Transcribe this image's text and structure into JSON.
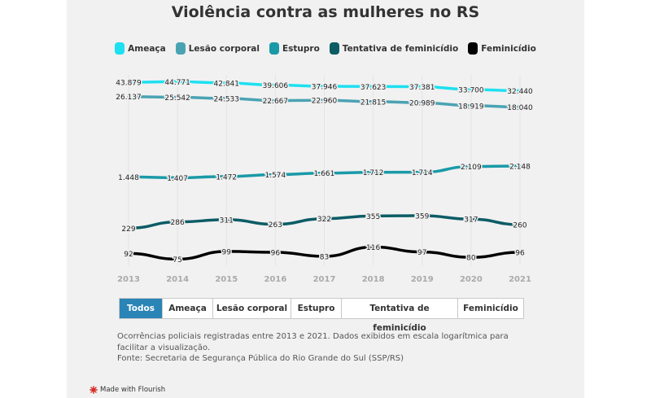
{
  "chart_data": {
    "type": "line",
    "title": "Violência contra as mulheres no RS",
    "x": [
      "2013",
      "2014",
      "2015",
      "2016",
      "2017",
      "2018",
      "2019",
      "2020",
      "2021"
    ],
    "y_scale": "log",
    "grid": "vertical",
    "legend_position": "top",
    "series": [
      {
        "name": "Ameaça",
        "color": "#1ee0f0",
        "values": [
          43879,
          44771,
          42841,
          39606,
          37946,
          37623,
          37381,
          33700,
          32440
        ],
        "labels": [
          "43.879",
          "44.771",
          "42.841",
          "39.606",
          "37.946",
          "37.623",
          "37.381",
          "33.700",
          "32.440"
        ]
      },
      {
        "name": "Lesão corporal",
        "color": "#4aa3b3",
        "values": [
          26137,
          25542,
          24533,
          22667,
          22960,
          21815,
          20989,
          18919,
          18040
        ],
        "labels": [
          "26.137",
          "25.542",
          "24.533",
          "22.667",
          "22.960",
          "21.815",
          "20.989",
          "18.919",
          "18.040"
        ]
      },
      {
        "name": "Estupro",
        "color": "#1a9aa8",
        "values": [
          1448,
          1407,
          1472,
          1574,
          1661,
          1712,
          1714,
          2109,
          2148
        ],
        "labels": [
          "1.448",
          "1.407",
          "1.472",
          "1.574",
          "1.661",
          "1.712",
          "1.714",
          "2.109",
          "2.148"
        ]
      },
      {
        "name": "Tentativa de feminicídio",
        "color": "#0c5c66",
        "values": [
          229,
          286,
          311,
          263,
          322,
          355,
          359,
          317,
          260
        ],
        "labels": [
          "229",
          "286",
          "311",
          "263",
          "322",
          "355",
          "359",
          "317",
          "260"
        ]
      },
      {
        "name": "Feminicídio",
        "color": "#000000",
        "values": [
          92,
          75,
          99,
          96,
          83,
          116,
          97,
          80,
          96
        ],
        "labels": [
          "92",
          "75",
          "99",
          "96",
          "83",
          "116",
          "97",
          "80",
          "96"
        ]
      }
    ]
  },
  "tabs": {
    "items": [
      "Todos",
      "Ameaça",
      "Lesão corporal",
      "Estupro",
      "Tentativa de feminicídio",
      "Feminicídio"
    ],
    "active": "Todos"
  },
  "caption": {
    "line1": "Ocorrências policiais registradas entre 2013 e 2021. Dados exibidos em escala logarítmica para facilitar a visualização.",
    "line2": "Fonte: Secretaria de Segurança Pública do Rio Grande do Sul (SSP/RS)"
  },
  "footer": {
    "credit": "Made with Flourish",
    "icon": "flourish-logo-icon",
    "icon_color": "#d6281e"
  },
  "colors": {
    "accent": "#2a84b5",
    "panel_bg": "#f1f1f1"
  }
}
